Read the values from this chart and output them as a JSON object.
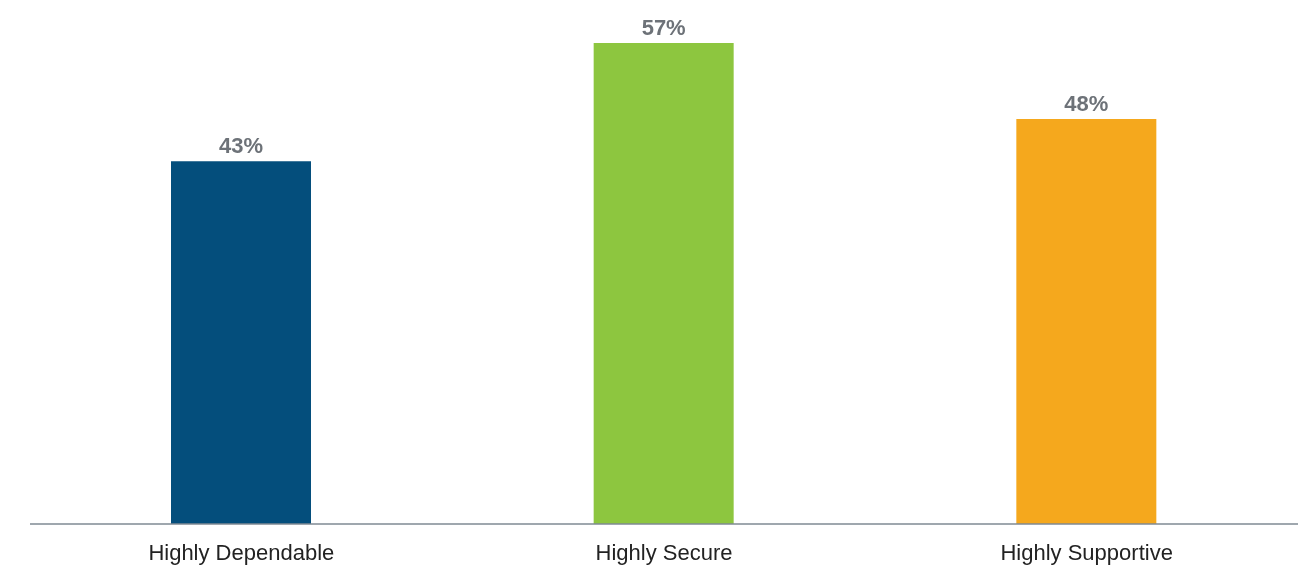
{
  "chart_data": {
    "type": "bar",
    "categories": [
      "Highly Dependable",
      "Highly Secure",
      "Highly Supportive"
    ],
    "values": [
      43,
      57,
      48
    ],
    "colors": [
      "#044e7c",
      "#8dc63f",
      "#f5a81d"
    ],
    "value_labels": [
      "43%",
      "57%",
      "48%"
    ]
  }
}
